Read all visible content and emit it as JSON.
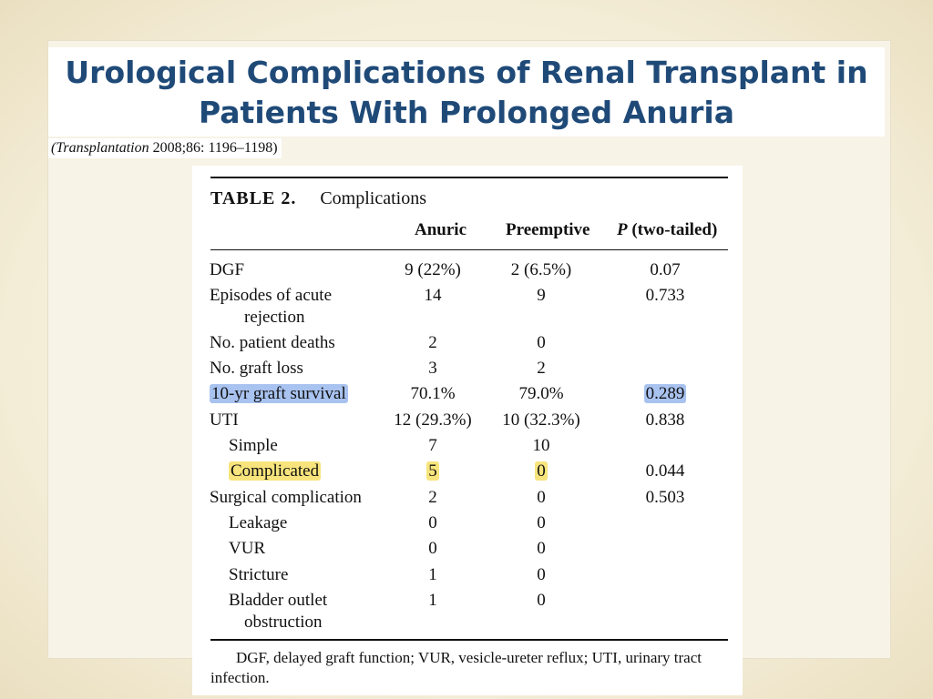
{
  "slide": {
    "title": "Urological Complications of Renal Transplant in Patients With Prolonged Anuria",
    "citation": {
      "journal": "(Transplantation",
      "ref": " 2008;86: 1196–1198)"
    }
  },
  "table": {
    "label": "TABLE 2.",
    "caption": "Complications",
    "headers": {
      "anuric": "Anuric",
      "preemptive": "Preemptive",
      "p_italic": "P",
      "p_rest": " (two-tailed)"
    },
    "rows": [
      {
        "label": "DGF",
        "label2": "",
        "anuric": "9 (22%)",
        "preemptive": "2 (6.5%)",
        "p": "0.07"
      },
      {
        "label": "Episodes of acute",
        "label2": "rejection",
        "anuric": "14",
        "preemptive": "9",
        "p": "0.733"
      },
      {
        "label": "No. patient deaths",
        "label2": "",
        "anuric": "2",
        "preemptive": "0",
        "p": ""
      },
      {
        "label": "No. graft loss",
        "label2": "",
        "anuric": "3",
        "preemptive": "2",
        "p": ""
      },
      {
        "label": "10-yr graft survival",
        "label2": "",
        "anuric": "70.1%",
        "preemptive": "79.0%",
        "p": "0.289"
      },
      {
        "label": "UTI",
        "label2": "",
        "anuric": "12 (29.3%)",
        "preemptive": "10 (32.3%)",
        "p": "0.838"
      },
      {
        "label": "Simple",
        "label2": "",
        "anuric": "7",
        "preemptive": "10",
        "p": ""
      },
      {
        "label": "Complicated",
        "label2": "",
        "anuric": "5",
        "preemptive": "0",
        "p": "0.044"
      },
      {
        "label": "Surgical complication",
        "label2": "",
        "anuric": "2",
        "preemptive": "0",
        "p": "0.503"
      },
      {
        "label": "Leakage",
        "label2": "",
        "anuric": "0",
        "preemptive": "0",
        "p": ""
      },
      {
        "label": "VUR",
        "label2": "",
        "anuric": "0",
        "preemptive": "0",
        "p": ""
      },
      {
        "label": "Stricture",
        "label2": "",
        "anuric": "1",
        "preemptive": "0",
        "p": ""
      },
      {
        "label": "Bladder outlet",
        "label2": "obstruction",
        "anuric": "1",
        "preemptive": "0",
        "p": ""
      }
    ],
    "footnote": "DGF, delayed graft function; VUR, vesicle-ureter reflux; UTI, urinary tract infection."
  },
  "colors": {
    "title": "#1f4a78",
    "highlight_blue": "#a9c3f0",
    "highlight_yellow": "#f7e47c"
  }
}
